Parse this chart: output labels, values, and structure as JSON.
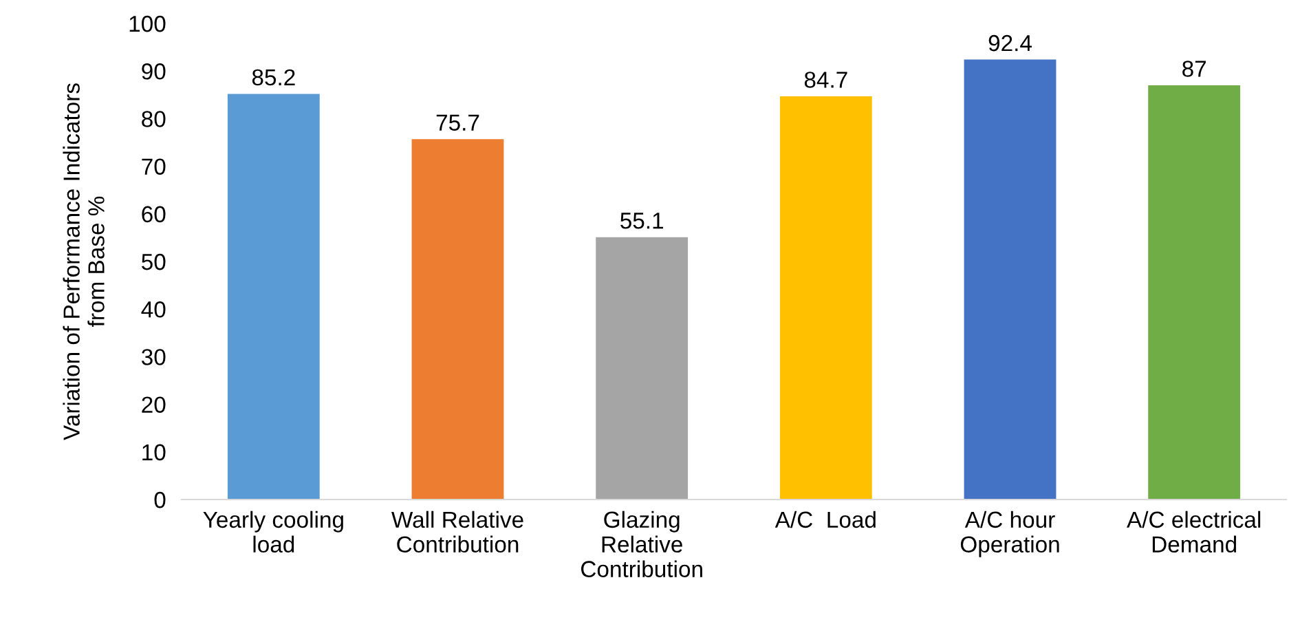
{
  "chart_data": {
    "type": "bar",
    "ylabel": "Variation of Performance Indicators\nfrom Base %",
    "categories": [
      "Yearly cooling\nload",
      "Wall Relative\nContribution",
      "Glazing\nRelative\nContribution",
      "A/C  Load",
      "A/C hour\nOperation",
      "A/C electrical\nDemand"
    ],
    "values": [
      85.2,
      75.7,
      55.1,
      84.7,
      92.4,
      87
    ],
    "colors": [
      "#5b9bd5",
      "#ed7d31",
      "#a5a5a5",
      "#ffc000",
      "#4472c4",
      "#70ad47"
    ],
    "ylim": [
      0,
      100
    ],
    "yticks": [
      0,
      10,
      20,
      30,
      40,
      50,
      60,
      70,
      80,
      90,
      100
    ],
    "data_labels": true,
    "grid": false,
    "legend": false
  }
}
